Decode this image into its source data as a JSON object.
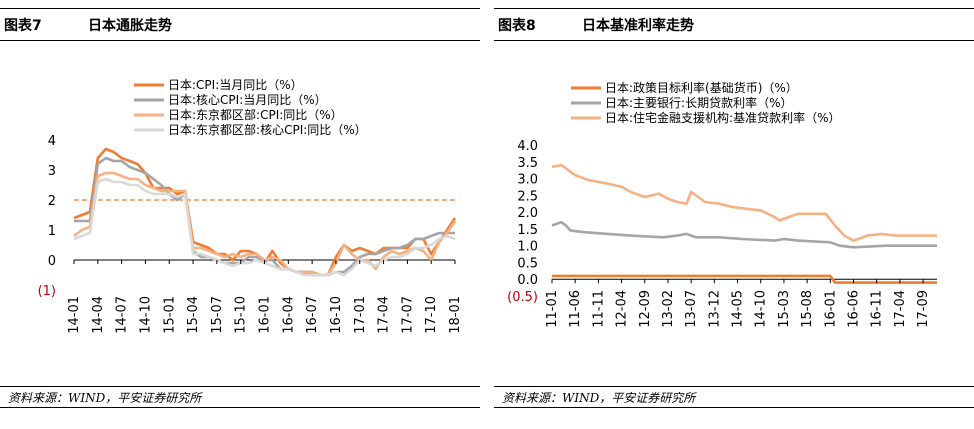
{
  "panels": [
    {
      "title_num": "图表7",
      "title_text": "日本通胀走势",
      "source": "资料来源：WIND，平安证券研究所"
    },
    {
      "title_num": "图表8",
      "title_text": "日本基准利率走势",
      "source": "资料来源：WIND，平安证券研究所"
    }
  ],
  "chart_data": [
    {
      "type": "line",
      "title": "",
      "xlabel": "",
      "ylabel": "",
      "ylim": [
        -1,
        4
      ],
      "yticks": [
        4,
        3,
        2,
        1,
        0,
        -1
      ],
      "ytick_labels": [
        "4",
        "3",
        "2",
        "1",
        "0",
        "(1)"
      ],
      "grid": false,
      "legend_position": "top",
      "x": [
        "14-01",
        "14-02",
        "14-03",
        "14-04",
        "14-05",
        "14-06",
        "14-07",
        "14-08",
        "14-09",
        "14-10",
        "14-11",
        "14-12",
        "15-01",
        "15-02",
        "15-03",
        "15-04",
        "15-05",
        "15-06",
        "15-07",
        "15-08",
        "15-09",
        "15-10",
        "15-11",
        "15-12",
        "16-01",
        "16-02",
        "16-03",
        "16-04",
        "16-05",
        "16-06",
        "16-07",
        "16-08",
        "16-09",
        "16-10",
        "16-11",
        "16-12",
        "17-01",
        "17-02",
        "17-03",
        "17-04",
        "17-05",
        "17-06",
        "17-07",
        "17-08",
        "17-09",
        "17-10",
        "17-11",
        "17-12",
        "18-01"
      ],
      "x_tick_labels": [
        "14-01",
        "14-04",
        "14-07",
        "14-10",
        "15-01",
        "15-04",
        "15-07",
        "15-10",
        "16-01",
        "16-04",
        "16-07",
        "16-10",
        "17-01",
        "17-04",
        "17-07",
        "17-10",
        "18-01"
      ],
      "reference_line": {
        "y": 2,
        "color": "#ED7D31",
        "style": "dashed"
      },
      "series": [
        {
          "name": "日本:CPI:当月同比（%）",
          "color": "#ED7D31",
          "values": [
            1.4,
            1.5,
            1.6,
            3.4,
            3.7,
            3.6,
            3.4,
            3.3,
            3.2,
            2.9,
            2.4,
            2.4,
            2.4,
            2.2,
            2.3,
            0.6,
            0.5,
            0.4,
            0.2,
            0.2,
            0.0,
            0.3,
            0.3,
            0.2,
            -0.1,
            0.3,
            -0.1,
            -0.3,
            -0.4,
            -0.4,
            -0.4,
            -0.5,
            -0.5,
            0.1,
            0.5,
            0.3,
            0.4,
            0.3,
            0.2,
            0.4,
            0.4,
            0.4,
            0.4,
            0.7,
            0.7,
            0.2,
            0.6,
            1.0,
            1.4
          ]
        },
        {
          "name": "日本:核心CPI:当月同比（%）",
          "color": "#A5A5A5",
          "values": [
            1.3,
            1.3,
            1.3,
            3.2,
            3.4,
            3.3,
            3.3,
            3.1,
            3.0,
            2.9,
            2.7,
            2.5,
            2.2,
            2.0,
            2.2,
            0.3,
            0.1,
            0.1,
            0.0,
            -0.1,
            -0.1,
            -0.1,
            0.1,
            0.1,
            0.0,
            0.0,
            -0.3,
            -0.3,
            -0.4,
            -0.4,
            -0.5,
            -0.5,
            -0.5,
            -0.4,
            -0.4,
            -0.2,
            0.1,
            0.2,
            0.2,
            0.3,
            0.4,
            0.4,
            0.5,
            0.7,
            0.7,
            0.8,
            0.9,
            0.9,
            0.9
          ]
        },
        {
          "name": "日本:东京都区部:CPI:同比（%）",
          "color": "#F4B183",
          "values": [
            0.8,
            1.0,
            1.1,
            2.8,
            2.9,
            2.9,
            2.8,
            2.7,
            2.7,
            2.5,
            2.4,
            2.3,
            2.3,
            2.3,
            2.3,
            0.4,
            0.4,
            0.3,
            0.2,
            0.1,
            0.2,
            0.1,
            0.2,
            0.2,
            0.0,
            0.1,
            0.0,
            -0.3,
            -0.4,
            -0.4,
            -0.4,
            -0.5,
            -0.5,
            -0.1,
            0.5,
            0.2,
            0.0,
            0.0,
            -0.3,
            0.1,
            0.3,
            0.2,
            0.3,
            0.4,
            0.3,
            0.0,
            0.6,
            0.9,
            1.3
          ]
        },
        {
          "name": "日本:东京都区部:核心CPI:同比（%）",
          "color": "#D9D9D9",
          "values": [
            0.7,
            0.8,
            0.9,
            2.6,
            2.7,
            2.6,
            2.6,
            2.5,
            2.5,
            2.3,
            2.2,
            2.2,
            2.2,
            2.1,
            2.2,
            0.2,
            0.2,
            0.1,
            0.0,
            -0.1,
            -0.2,
            -0.1,
            -0.1,
            0.0,
            -0.1,
            -0.2,
            -0.3,
            -0.3,
            -0.4,
            -0.5,
            -0.5,
            -0.5,
            -0.5,
            -0.4,
            -0.5,
            -0.3,
            0.0,
            -0.1,
            -0.2,
            0.0,
            0.1,
            0.1,
            0.2,
            0.4,
            0.4,
            0.5,
            0.7,
            0.8,
            0.7
          ]
        }
      ]
    },
    {
      "type": "line",
      "title": "",
      "xlabel": "",
      "ylabel": "",
      "ylim": [
        -0.5,
        4.0
      ],
      "yticks": [
        4.0,
        3.5,
        3.0,
        2.5,
        2.0,
        1.5,
        1.0,
        0.5,
        0.0,
        -0.5
      ],
      "ytick_labels": [
        "4.0",
        "3.5",
        "3.0",
        "2.5",
        "2.0",
        "1.5",
        "1.0",
        "0.5",
        "0.0",
        "(0.5)"
      ],
      "grid": false,
      "legend_position": "top",
      "x_range": [
        "11-01",
        "17-12"
      ],
      "x_tick_labels": [
        "11-01",
        "11-06",
        "11-11",
        "12-04",
        "12-09",
        "13-02",
        "13-07",
        "13-12",
        "14-05",
        "14-10",
        "15-03",
        "15-08",
        "16-01",
        "16-06",
        "16-11",
        "17-04",
        "17-09"
      ],
      "series": [
        {
          "name": "日本:政策目标利率(基础货币)（%）",
          "color": "#ED7D31",
          "x": [
            "11-01",
            "16-01",
            "16-02",
            "17-12"
          ],
          "values": [
            0.1,
            0.1,
            -0.1,
            -0.1
          ]
        },
        {
          "name": "日本:主要银行:长期贷款利率（%）",
          "color": "#A5A5A5",
          "x": [
            "11-01",
            "11-03",
            "11-04",
            "11-05",
            "11-08",
            "12-01",
            "12-06",
            "13-01",
            "13-04",
            "13-06",
            "13-08",
            "14-01",
            "14-06",
            "15-01",
            "15-03",
            "15-06",
            "16-01",
            "16-03",
            "16-06",
            "17-01",
            "17-12"
          ],
          "values": [
            1.6,
            1.7,
            1.6,
            1.45,
            1.4,
            1.35,
            1.3,
            1.25,
            1.3,
            1.35,
            1.25,
            1.25,
            1.2,
            1.15,
            1.2,
            1.15,
            1.1,
            1.0,
            0.95,
            1.0,
            1.0
          ]
        },
        {
          "name": "日本:住宅金融支援机构:基准贷款利率（%）",
          "color": "#F4B183",
          "x": [
            "11-01",
            "11-03",
            "11-06",
            "11-09",
            "12-01",
            "12-04",
            "12-06",
            "12-09",
            "12-12",
            "13-02",
            "13-04",
            "13-06",
            "13-07",
            "13-10",
            "14-01",
            "14-04",
            "14-07",
            "14-10",
            "15-01",
            "15-02",
            "15-04",
            "15-06",
            "15-09",
            "15-12",
            "16-02",
            "16-04",
            "16-06",
            "16-09",
            "16-12",
            "17-03",
            "17-06",
            "17-09",
            "17-12"
          ],
          "values": [
            3.35,
            3.4,
            3.1,
            2.95,
            2.85,
            2.75,
            2.6,
            2.45,
            2.55,
            2.4,
            2.3,
            2.25,
            2.6,
            2.3,
            2.25,
            2.15,
            2.1,
            2.05,
            1.85,
            1.75,
            1.85,
            1.95,
            1.95,
            1.95,
            1.6,
            1.3,
            1.15,
            1.3,
            1.35,
            1.3,
            1.3,
            1.3,
            1.3
          ]
        }
      ]
    }
  ]
}
